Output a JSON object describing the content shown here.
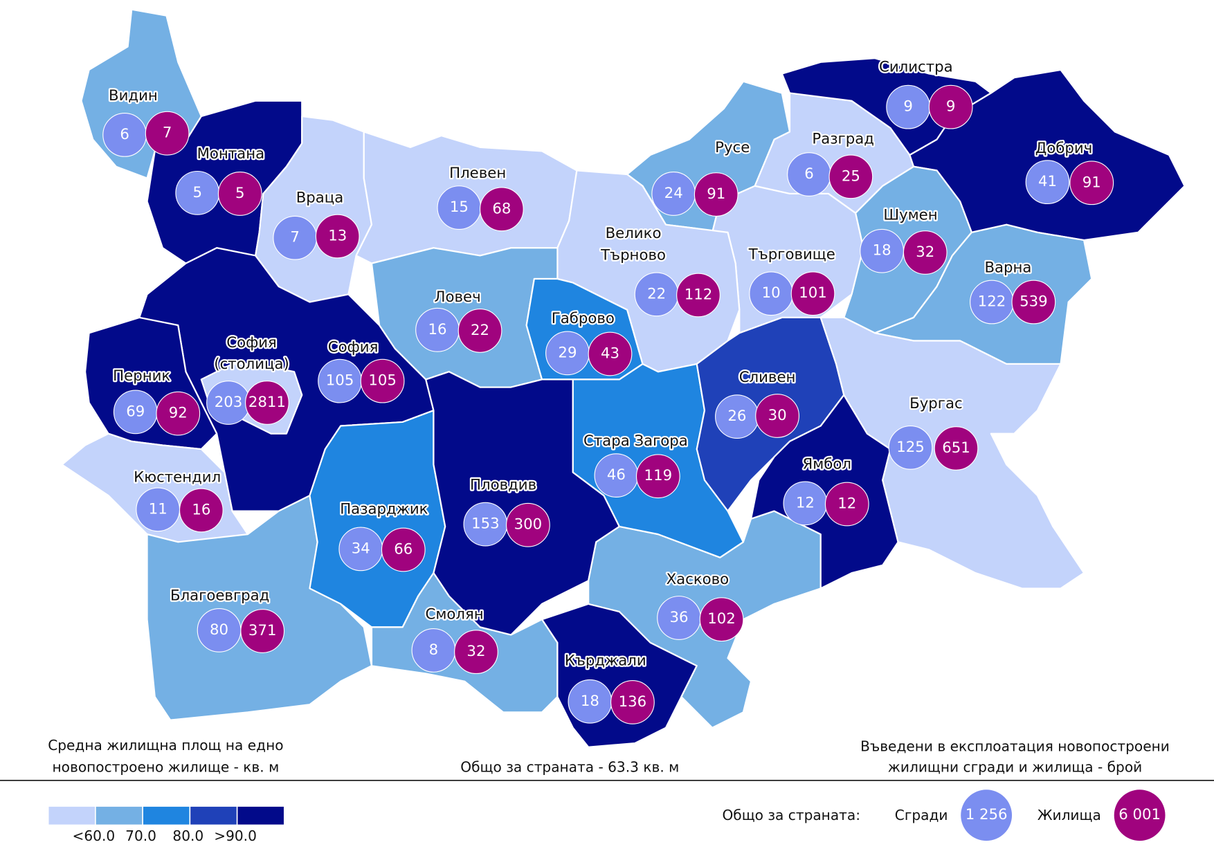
{
  "regions": [
    {
      "name": "Видин",
      "color": "#74b0e4",
      "buildings": "6",
      "dwellings": "7"
    },
    {
      "name": "Монтана",
      "color": "#020a8a",
      "buildings": "5",
      "dwellings": "5"
    },
    {
      "name": "Враца",
      "color": "#c3d3fb",
      "buildings": "7",
      "dwellings": "13"
    },
    {
      "name": "Плевен",
      "color": "#c3d3fb",
      "buildings": "15",
      "dwellings": "68"
    },
    {
      "name": "Русе",
      "color": "#74b0e4",
      "buildings": "24",
      "dwellings": "91"
    },
    {
      "name": "Разград",
      "color": "#c3d3fb",
      "buildings": "6",
      "dwellings": "25"
    },
    {
      "name": "Силистра",
      "color": "#020a8a",
      "buildings": "9",
      "dwellings": "9"
    },
    {
      "name": "Добрич",
      "color": "#020a8a",
      "buildings": "41",
      "dwellings": "91"
    },
    {
      "name": "Шумен",
      "color": "#74b0e4",
      "buildings": "18",
      "dwellings": "32"
    },
    {
      "name": "Търговище",
      "color": "#c3d3fb",
      "buildings": "10",
      "dwellings": "101"
    },
    {
      "name": [
        "Велико",
        "Търново"
      ],
      "color": "#c3d3fb",
      "buildings": "22",
      "dwellings": "112"
    },
    {
      "name": "Варна",
      "color": "#74b0e4",
      "buildings": "122",
      "dwellings": "539"
    },
    {
      "name": "Ловеч",
      "color": "#74b0e4",
      "buildings": "16",
      "dwellings": "22"
    },
    {
      "name": "Габрово",
      "color": "#1f85e0",
      "buildings": "29",
      "dwellings": "43"
    },
    {
      "name": "София",
      "color": "#020a8a",
      "buildings": "105",
      "dwellings": "105"
    },
    {
      "name": "Перник",
      "color": "#020a8a",
      "buildings": "69",
      "dwellings": "92"
    },
    {
      "name": [
        "София",
        "(столица)"
      ],
      "color": "#c3d3fb",
      "buildings": "203",
      "dwellings": "2811"
    },
    {
      "name": "Кюстендил",
      "color": "#c3d3fb",
      "buildings": "11",
      "dwellings": "16"
    },
    {
      "name": "Благоевград",
      "color": "#74b0e4",
      "buildings": "80",
      "dwellings": "371"
    },
    {
      "name": "Пазарджик",
      "color": "#1f85e0",
      "buildings": "34",
      "dwellings": "66"
    },
    {
      "name": "Пловдив",
      "color": "#020a8a",
      "buildings": "153",
      "dwellings": "300"
    },
    {
      "name": "Смолян",
      "color": "#74b0e4",
      "buildings": "8",
      "dwellings": "32"
    },
    {
      "name": "Кърджали",
      "color": "#020a8a",
      "buildings": "18",
      "dwellings": "136"
    },
    {
      "name": "Хасково",
      "color": "#74b0e4",
      "buildings": "36",
      "dwellings": "102"
    },
    {
      "name": "Стара Загора",
      "color": "#1f85e0",
      "buildings": "46",
      "dwellings": "119"
    },
    {
      "name": "Сливен",
      "color": "#1f41b8",
      "buildings": "26",
      "dwellings": "30"
    },
    {
      "name": "Ямбол",
      "color": "#020a8a",
      "buildings": "12",
      "dwellings": "12"
    },
    {
      "name": "Бургас",
      "color": "#c3d3fb",
      "buildings": "125",
      "dwellings": "651"
    }
  ],
  "buildings_color": "#7b8ef0",
  "dwellings_color": "#a0037e",
  "captions": {
    "area": [
      "Средна жилищна площ на едно",
      "новопостроено жилище - кв. м"
    ],
    "country_area": "Общо за страната - 63.3 кв. м",
    "counts": [
      "Въведени в експлоатация новопостроени",
      "жилищни сгради и жилища - брой"
    ]
  },
  "legend": {
    "colors": [
      "#c3d3fb",
      "#74b0e4",
      "#1f85e0",
      "#1f41b8",
      "#020a8a"
    ],
    "labels": [
      "<60.0",
      "70.0",
      "80.0",
      ">90.0"
    ]
  },
  "totals": {
    "label": "Общо за страната:",
    "buildings_label": "Сгради",
    "buildings": "1 256",
    "dwellings_label": "Жилища",
    "dwellings": "6 001"
  }
}
